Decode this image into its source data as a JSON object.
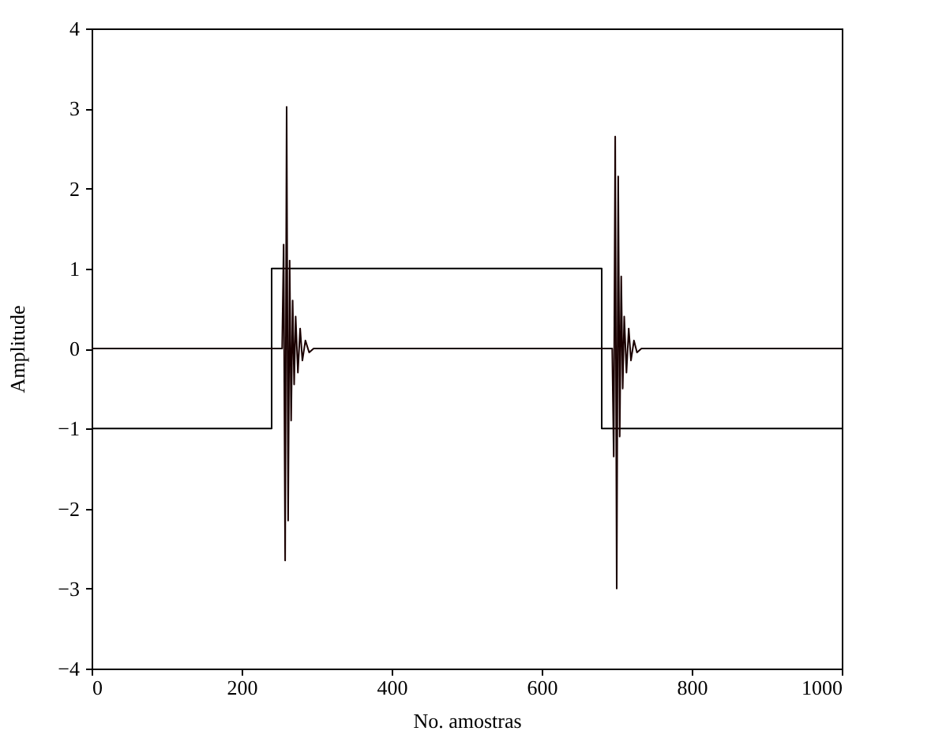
{
  "chart_data": {
    "type": "line",
    "xlabel": "No. amostras",
    "ylabel": "Amplitude",
    "xlim": [
      0,
      1000
    ],
    "ylim": [
      -4,
      4
    ],
    "xticks": [
      0,
      200,
      400,
      600,
      800,
      1000
    ],
    "yticks": [
      -4,
      -3,
      -2,
      -1,
      0,
      1,
      2,
      3,
      4
    ],
    "grid": false,
    "series": [
      {
        "color": "#000000",
        "x": [
          0,
          240,
          240,
          680,
          680,
          1000
        ],
        "values": [
          -1,
          -1,
          1,
          1,
          -1,
          -1
        ]
      },
      {
        "color": "#1a0000",
        "x": [
          0,
          254,
          256,
          258,
          260,
          262,
          264,
          266,
          268,
          270,
          272,
          275,
          278,
          281,
          285,
          290,
          296,
          694,
          696,
          698,
          700,
          702,
          704,
          706,
          708,
          710,
          713,
          716,
          719,
          723,
          727,
          733,
          1000
        ],
        "values": [
          0,
          0,
          1.3,
          -2.65,
          3.02,
          -2.15,
          1.1,
          -0.9,
          0.6,
          -0.45,
          0.4,
          -0.3,
          0.25,
          -0.15,
          0.1,
          -0.05,
          0,
          0,
          -1.35,
          2.65,
          -3.0,
          2.15,
          -1.1,
          0.9,
          -0.5,
          0.4,
          -0.3,
          0.25,
          -0.15,
          0.1,
          -0.05,
          0,
          0
        ]
      }
    ]
  }
}
